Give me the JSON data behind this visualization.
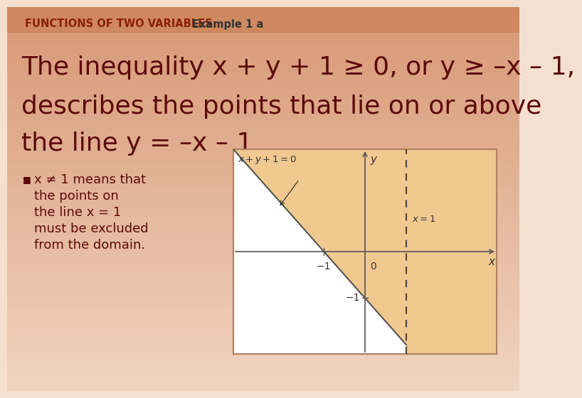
{
  "bg_top_color": "#f5e0d0",
  "bg_bottom_color": "#d4906a",
  "header_text": "FUNCTIONS OF TWO VARIABLES",
  "header_example": "Example 1 a",
  "header_color": "#8B2000",
  "header_example_color": "#333333",
  "header_fontsize": 10.5,
  "main_line1": "The inequality x + y + 1 ≥ 0, or y ≥ –x – 1,",
  "main_line2": "describes the points that lie on or above",
  "main_line3": "the line y = –x – 1",
  "main_text_color": "#5C0A0A",
  "main_fontsize": 26,
  "bullet_lines": [
    "x ≠ 1 means that",
    "the points on",
    "the line x = 1",
    "must be excluded",
    "from the domain."
  ],
  "bullet_color": "#5C0A0A",
  "bullet_fontsize": 13,
  "graph_xlim": [
    -3.2,
    3.2
  ],
  "graph_ylim": [
    -2.2,
    2.2
  ],
  "shaded_color": "#f0c890",
  "line_color": "#555555",
  "dashed_color": "#444444",
  "axis_color": "#555555",
  "label_color": "#333333",
  "graph_border_color": "#b08060"
}
